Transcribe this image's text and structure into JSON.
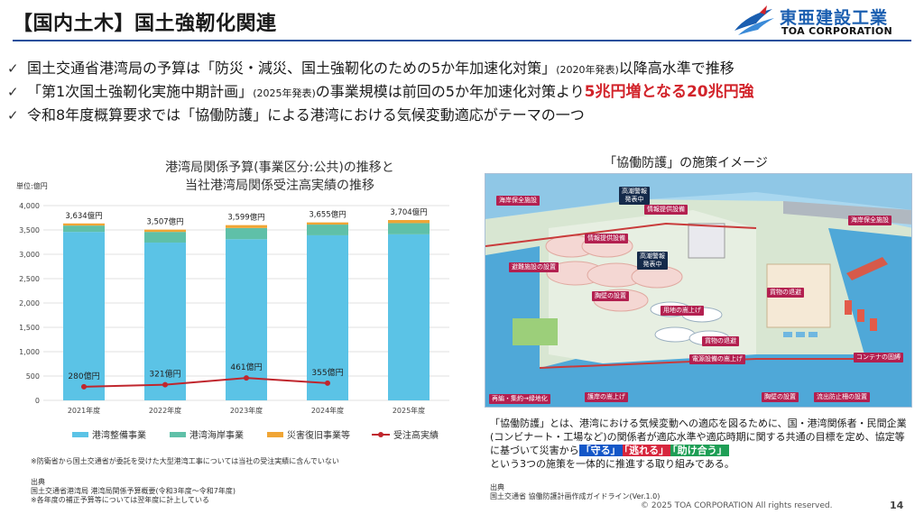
{
  "header": {
    "title": "【国内土木】国土強靭化関連",
    "logo_jp": "東亜建設工業",
    "logo_en": "TOA CORPORATION"
  },
  "bullets": [
    {
      "a": "国土交通省港湾局の予算は「防災・減災、国土強靭化のための5か年加速化対策」",
      "small": "(2020年発表)",
      "b": "以降高水準で推移"
    },
    {
      "a": "「第1次国土強靭化実施中期計画」",
      "small": "(2025年発表)",
      "b": "の事業規模は前回の5か年加速化対策より",
      "red": "5兆円増となる20兆円強"
    },
    {
      "a": "令和8年度概算要求では「協働防護」による港湾における気候変動適応がテーマの一つ"
    }
  ],
  "chart_data": {
    "type": "bar",
    "title": "港湾局関係予算(事業区分:公共)の推移と\n当社港湾局関係受注高実績の推移",
    "title_line1": "港湾局関係予算(事業区分:公共)の推移と",
    "title_line2": "当社港湾局関係受注高実績の推移",
    "unit": "単位:億円",
    "categories": [
      "2021年度",
      "2022年度",
      "2023年度",
      "2024年度",
      "2025年度"
    ],
    "ylim": [
      0,
      4000
    ],
    "yticks": [
      0,
      500,
      1000,
      1500,
      2000,
      2500,
      3000,
      3500,
      4000
    ],
    "ytick_labels": [
      "0",
      "500",
      "1,000",
      "1,500",
      "2,000",
      "2,500",
      "3,000",
      "3,500",
      "4,000"
    ],
    "stacked": true,
    "series": [
      {
        "name": "港湾整備事業",
        "values": [
          3460,
          3240,
          3310,
          3390,
          3410
        ]
      },
      {
        "name": "港湾海岸事業",
        "values": [
          130,
          220,
          230,
          220,
          230
        ]
      },
      {
        "name": "災害復旧事業等",
        "values": [
          44,
          47,
          59,
          45,
          64
        ]
      }
    ],
    "totals": [
      3634,
      3507,
      3599,
      3655,
      3704
    ],
    "total_labels": [
      "3,634億円",
      "3,507億円",
      "3,599億円",
      "3,655億円",
      "3,704億円"
    ],
    "line_series": {
      "name": "受注高実績",
      "values": [
        280,
        321,
        461,
        355,
        null
      ]
    },
    "line_labels": [
      "280億円",
      "321億円",
      "461億円",
      "355億円"
    ],
    "colors": {
      "s1": "#5bc3e6",
      "s2": "#5fc0a8",
      "s3": "#f0a535",
      "line": "#c0262d"
    },
    "legend": [
      "港湾整備事業",
      "港湾海岸事業",
      "災害復旧事業等",
      "受注高実績"
    ]
  },
  "chart_note": "※防衛省から国土交通省が委託を受けた大型港湾工事については当社の受注実績に含んでいない",
  "left_source": {
    "label": "出典",
    "line1": "国土交通省港湾局 港湾局関係予算概要(令和3年度～令和7年度)",
    "line2": "※各年度の補正予算等については翌年度に計上している"
  },
  "illustration": {
    "title": "「協働防護」の施策イメージ",
    "tags": {
      "t1": "海岸保全施設",
      "t2": "高潮警報\n発表中",
      "t3": "情報提供設備",
      "t4": "海岸保全施設",
      "t5": "情報提供設備",
      "t6": "高潮警報\n発表中",
      "t7": "避難施設の設置",
      "t8": "貨物の退避",
      "t9": "胸壁の設置",
      "t10": "用地の嵩上げ",
      "t11": "貨物の退避",
      "t12": "電源設備の嵩上げ",
      "t13": "コンテナの固縛",
      "t14": "再編・集約→緑地化",
      "t15": "護岸の嵩上げ",
      "t16": "胸壁の設置",
      "t17": "流出防止柵の設置"
    }
  },
  "description": {
    "p1": "「協働防護」とは、港湾における気候変動への適応を図るために、国・港湾関係者・民間企業(コンビナート・工場など)の関係者が適応水準や適応時期に関する共通の目標を定め、協定等に基づいて災害から",
    "h1": "「守る」",
    "h2": "「逃れる」",
    "h3": "「助け合う」",
    "p2": "という3つの施策を一体的に推進する取り組みである。"
  },
  "right_source": {
    "label": "出典",
    "line1": "国土交通省 協働防護計画作成ガイドライン(Ver.1.0)"
  },
  "footer": {
    "copyright": "© 2025 TOA CORPORATION  All rights reserved.",
    "page": "14"
  }
}
